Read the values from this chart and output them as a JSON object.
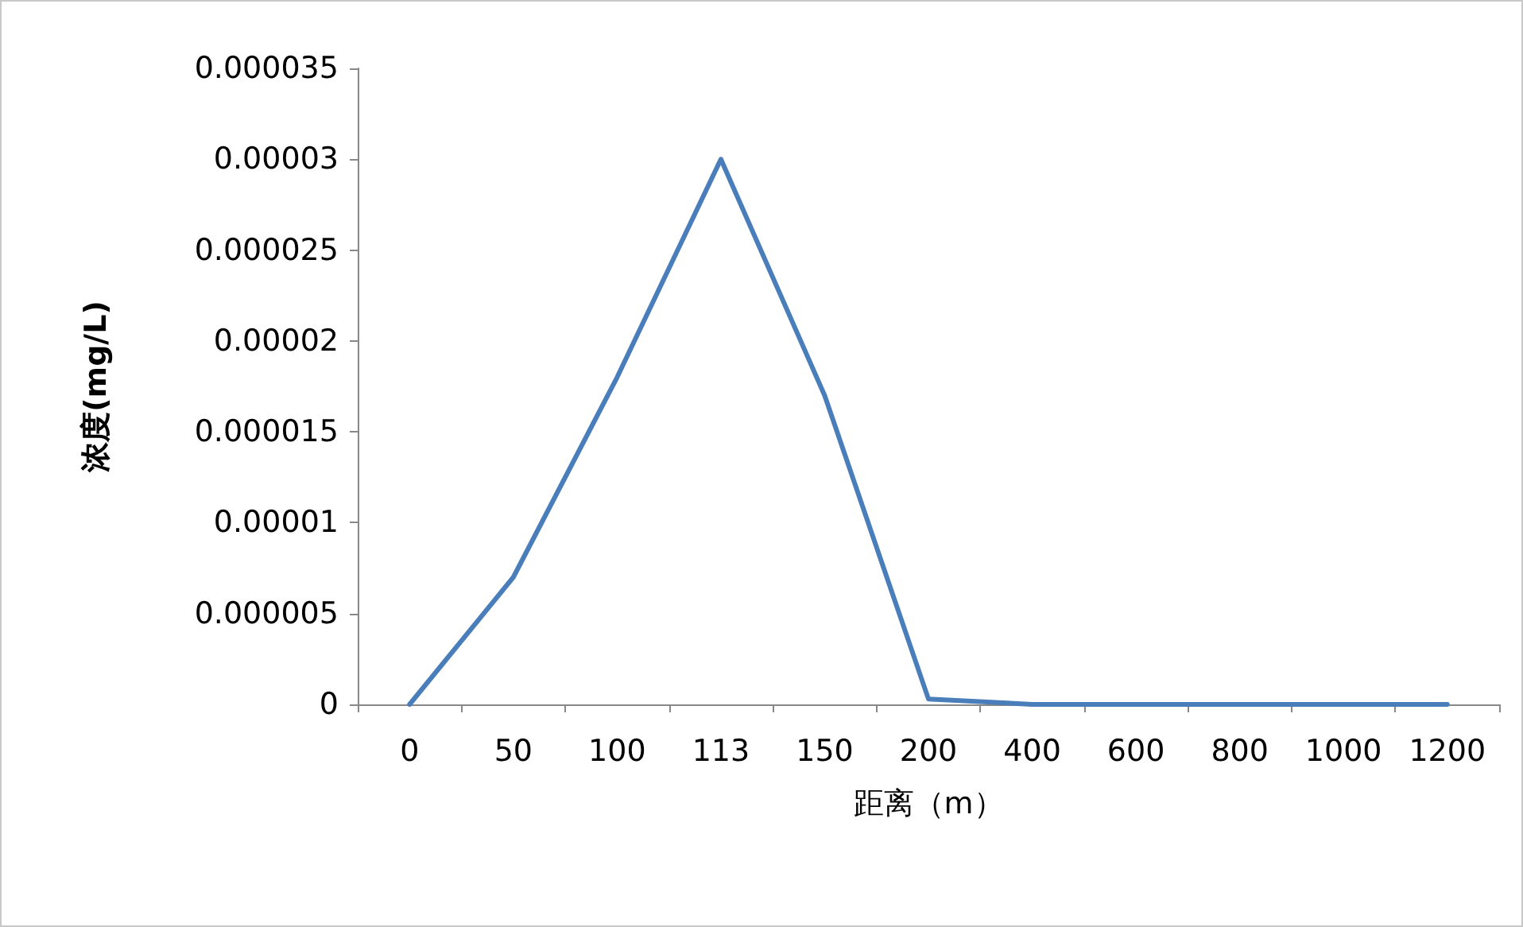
{
  "chart_data": {
    "type": "line",
    "xlabel": "距离（m）",
    "ylabel": "浓度(mg/L)",
    "categories": [
      "0",
      "50",
      "100",
      "113",
      "150",
      "200",
      "400",
      "600",
      "800",
      "1000",
      "1200"
    ],
    "series": [
      {
        "color": "#4a7ebb",
        "values": [
          0,
          7e-06,
          1.8e-05,
          3e-05,
          1.7e-05,
          3e-07,
          0,
          0,
          0,
          0,
          0
        ]
      }
    ],
    "ylim": [
      0,
      3.5e-05
    ],
    "yticks": [
      0,
      {
        "value": 5e-06,
        "label": "0.000005"
      },
      {
        "value": 1e-05,
        "label": "0.00001"
      },
      {
        "value": 1.5e-05,
        "label": "0.000015"
      },
      {
        "value": 2e-05,
        "label": "0.00002"
      },
      {
        "value": 2.5e-05,
        "label": "0.000025"
      },
      {
        "value": 3e-05,
        "label": "0.00003"
      },
      {
        "value": 3.5e-05,
        "label": "0.000035"
      }
    ],
    "grid": false,
    "marker": "none",
    "line_style": "solid"
  }
}
